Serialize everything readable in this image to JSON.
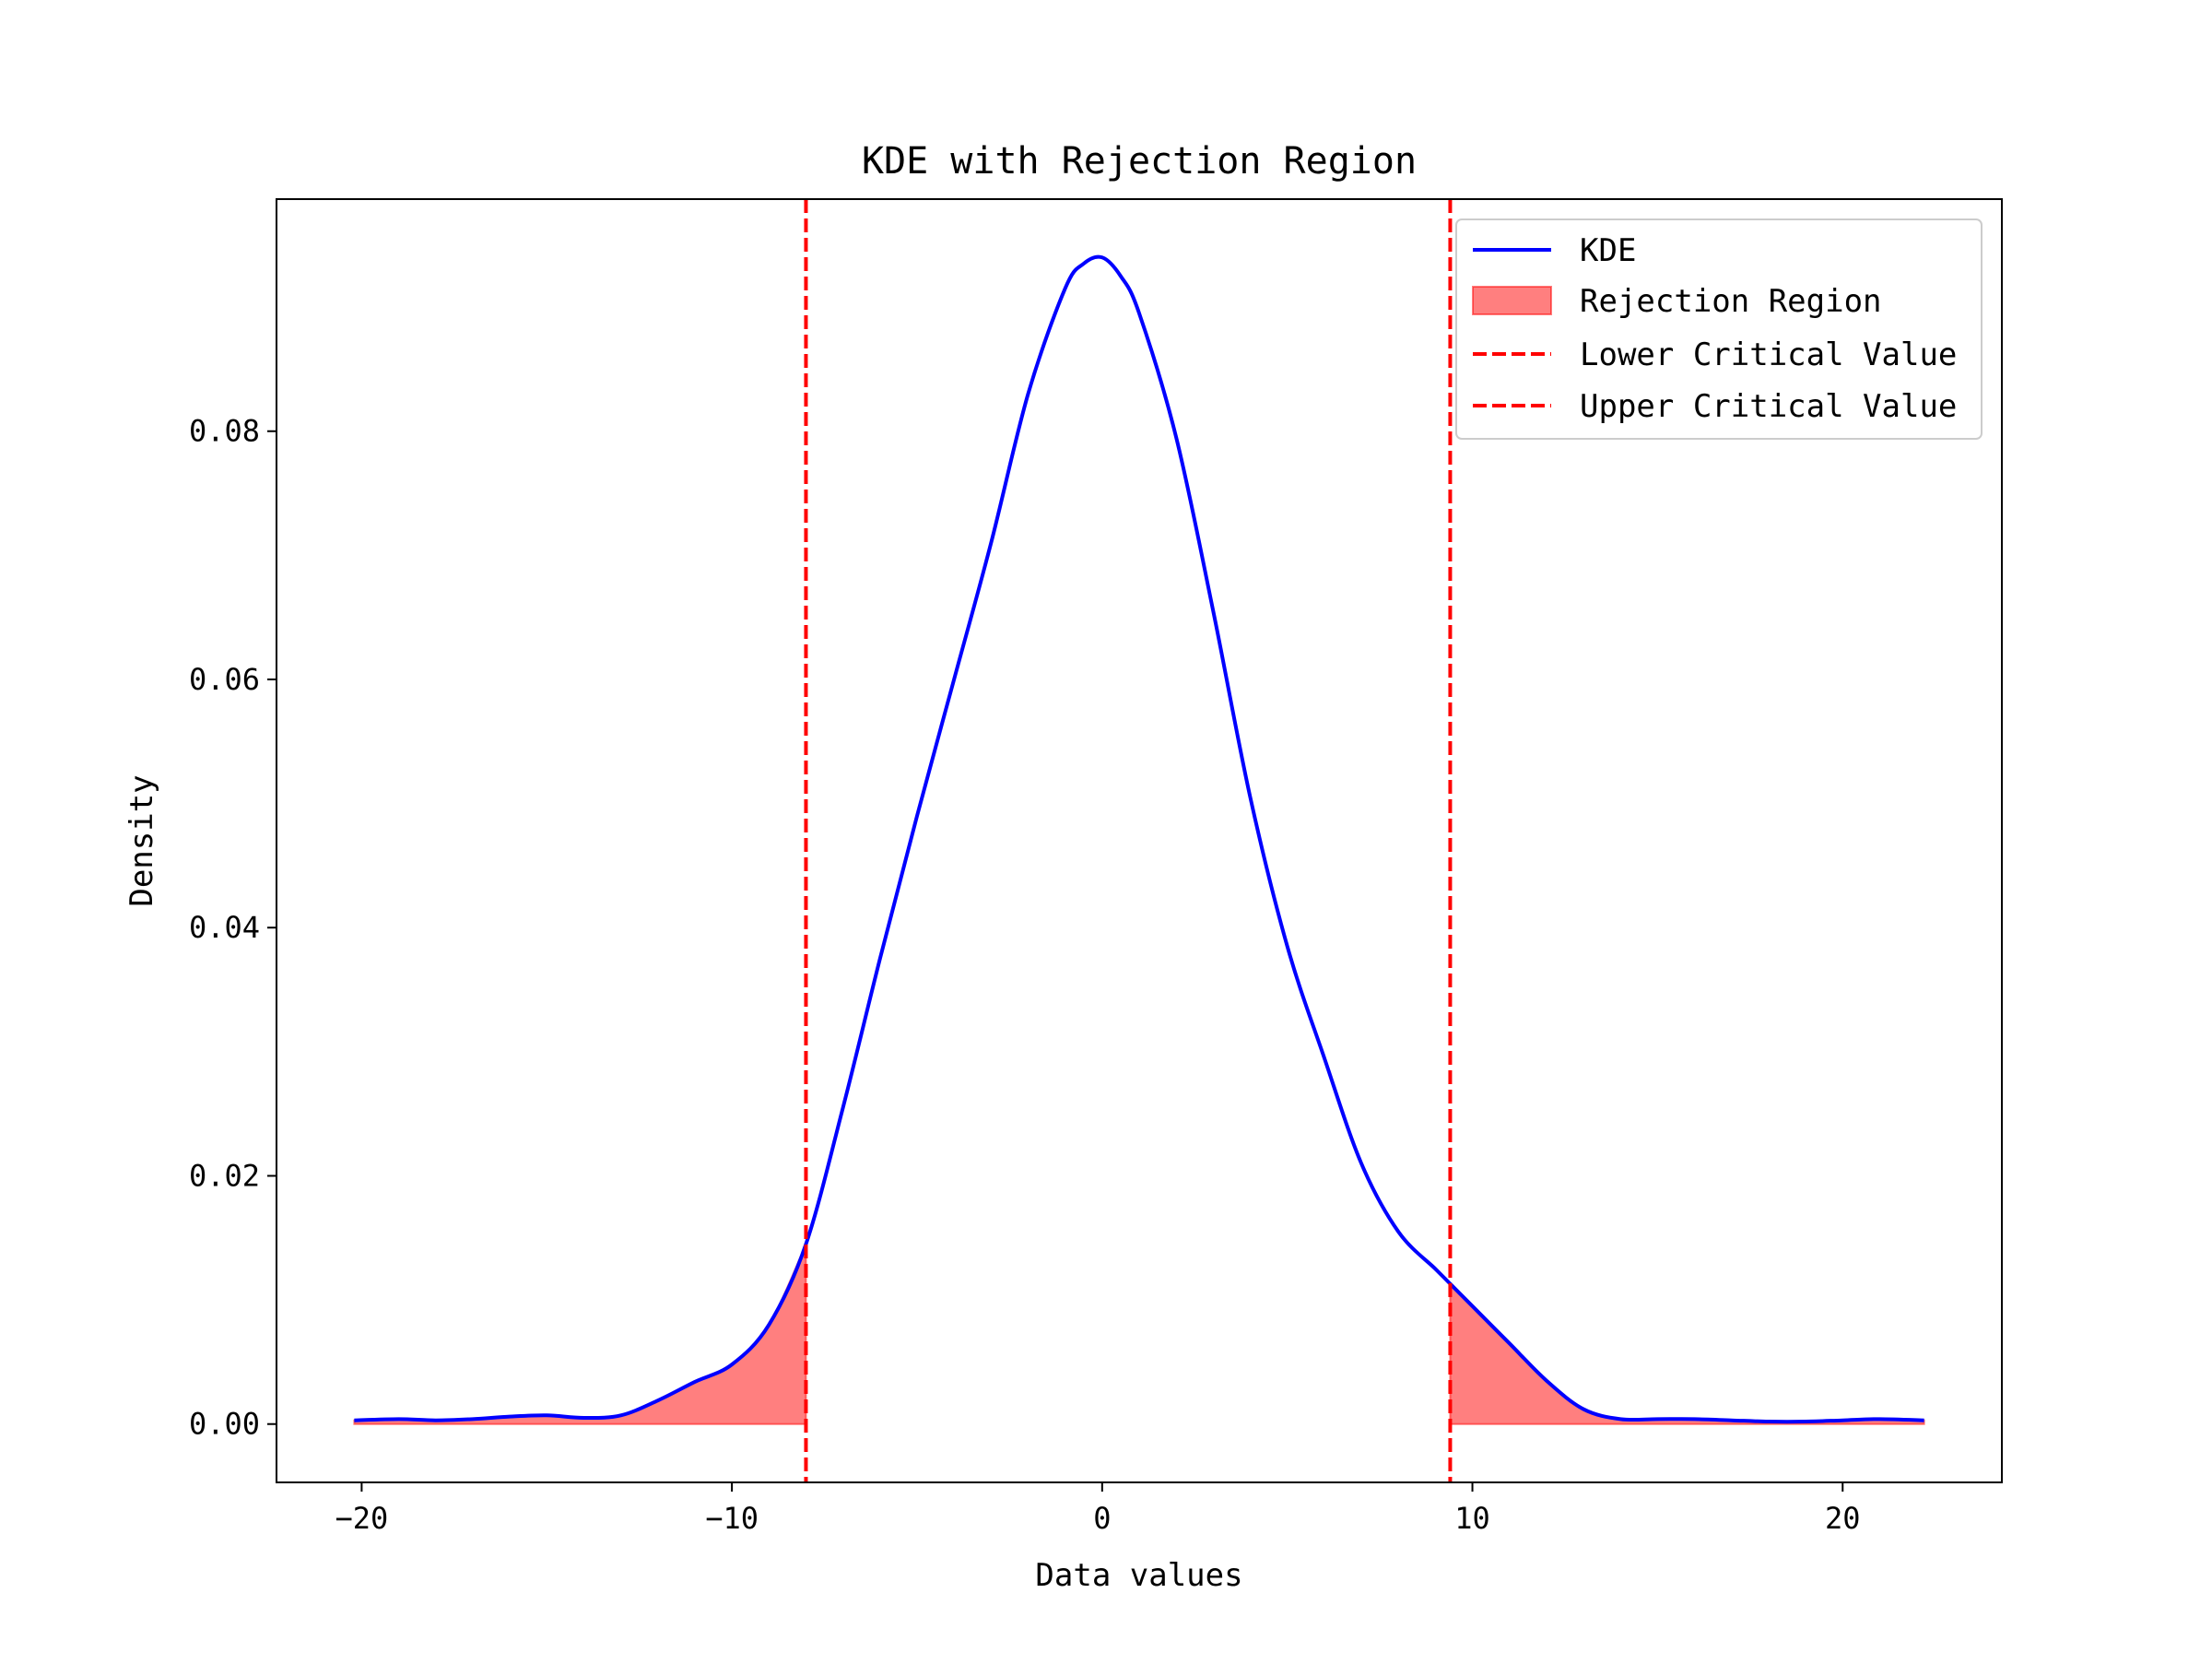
{
  "chart_data": {
    "type": "area",
    "title": "KDE with Rejection Region",
    "xlabel": "Data values",
    "ylabel": "Density",
    "xlim": [
      -22.3,
      24.3
    ],
    "ylim": [
      -0.0047,
      0.0987
    ],
    "xticks": [
      -20,
      -10,
      0,
      10,
      20
    ],
    "xtick_labels": [
      "−20",
      "−10",
      "0",
      "10",
      "20"
    ],
    "yticks": [
      0.0,
      0.02,
      0.04,
      0.06,
      0.08
    ],
    "ytick_labels": [
      "0.00",
      "0.02",
      "0.04",
      "0.06",
      "0.08"
    ],
    "grid": false,
    "legend_position": "upper-right",
    "lower_critical_value": -8.0,
    "upper_critical_value": 9.4,
    "series": [
      {
        "name": "KDE",
        "kind": "line",
        "color": "#0000ff",
        "x": [
          -20.2,
          -19.0,
          -18.0,
          -17.0,
          -16.0,
          -15.0,
          -14.0,
          -13.0,
          -12.0,
          -11.0,
          -10.0,
          -9.0,
          -8.0,
          -7.0,
          -6.0,
          -5.0,
          -4.0,
          -3.0,
          -2.0,
          -1.0,
          -0.5,
          0.0,
          0.5,
          1.0,
          2.0,
          3.0,
          4.0,
          5.0,
          6.0,
          7.0,
          8.0,
          9.0,
          9.4,
          10.0,
          11.0,
          12.0,
          13.0,
          14.0,
          15.0,
          16.0,
          17.0,
          18.0,
          19.0,
          20.0,
          21.0,
          22.2
        ],
        "y": [
          0.0003,
          0.0004,
          0.0003,
          0.0004,
          0.0006,
          0.0007,
          0.0005,
          0.0007,
          0.0019,
          0.0034,
          0.0048,
          0.008,
          0.0145,
          0.0255,
          0.0375,
          0.049,
          0.06,
          0.071,
          0.083,
          0.0915,
          0.0935,
          0.094,
          0.0925,
          0.0895,
          0.0795,
          0.0655,
          0.0505,
          0.0385,
          0.0295,
          0.021,
          0.0155,
          0.0125,
          0.0113,
          0.0095,
          0.0065,
          0.0035,
          0.0012,
          0.0004,
          0.0004,
          0.0004,
          0.0003,
          0.0002,
          0.0002,
          0.0003,
          0.0004,
          0.0003
        ]
      },
      {
        "name": "Rejection Region",
        "kind": "fill",
        "color": "#ff0000",
        "opacity": 0.5
      },
      {
        "name": "Lower Critical Value",
        "kind": "vline",
        "color": "#ff0000",
        "x": -8.0
      },
      {
        "name": "Upper Critical Value",
        "kind": "vline",
        "color": "#ff0000",
        "x": 9.4
      }
    ]
  }
}
